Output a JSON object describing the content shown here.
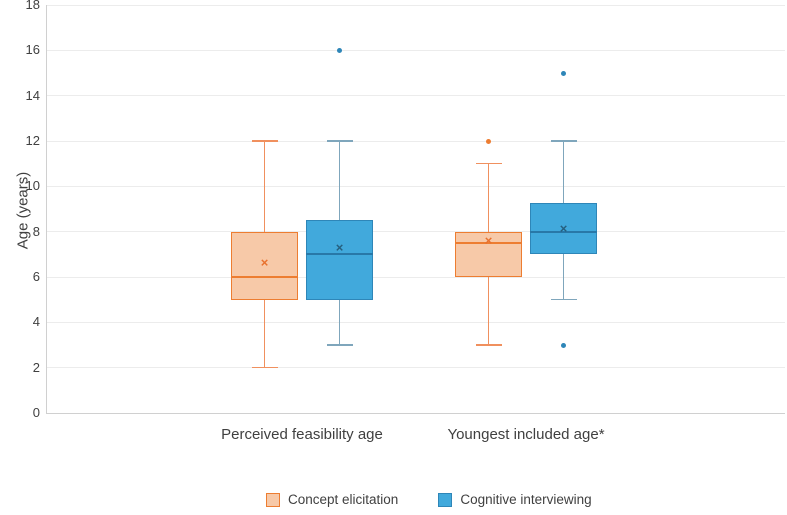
{
  "chart_data": {
    "type": "boxplot",
    "title": "",
    "ylabel": "Age (years)",
    "ylim": [
      0,
      18
    ],
    "yticks": [
      0,
      2,
      4,
      6,
      8,
      10,
      12,
      14,
      16,
      18
    ],
    "grid": true,
    "legend_position": "bottom",
    "categories": [
      "Perceived feasibility age",
      "Youngest included age*"
    ],
    "series": [
      {
        "name": "Concept elicitation",
        "fill": "#F7C9A8",
        "border": "#ED7D31",
        "whisker": "#F0905E",
        "median_color": "#ED7D31",
        "mean_color": "#E8712E",
        "outlier_color": "#ED7D31",
        "boxes": [
          {
            "category": "Perceived feasibility age",
            "min": 2,
            "q1": 5,
            "median": 6,
            "q3": 8,
            "max": 12,
            "mean": 6.6,
            "outliers": []
          },
          {
            "category": "Youngest included age*",
            "min": 3,
            "q1": 6,
            "median": 7.5,
            "q3": 8,
            "max": 11,
            "mean": 7.6,
            "outliers": [
              12
            ]
          }
        ]
      },
      {
        "name": "Cognitive interviewing",
        "fill": "#41A9DC",
        "border": "#2E86B8",
        "whisker": "#7FA6BC",
        "median_color": "#2878A8",
        "mean_color": "#265F7E",
        "outlier_color": "#2E86B8",
        "boxes": [
          {
            "category": "Perceived feasibility age",
            "min": 3,
            "q1": 5,
            "median": 7,
            "q3": 8.5,
            "max": 12,
            "mean": 7.3,
            "outliers": [
              16
            ]
          },
          {
            "category": "Youngest included age*",
            "min": 5,
            "q1": 7,
            "median": 8,
            "q3": 9.25,
            "max": 12,
            "mean": 8.1,
            "outliers": [
              15,
              3
            ]
          }
        ]
      }
    ]
  },
  "legend": {
    "items": [
      {
        "label": "Concept elicitation",
        "fill": "#F7C9A8",
        "border": "#ED7D31"
      },
      {
        "label": "Cognitive interviewing",
        "fill": "#41A9DC",
        "border": "#2E86B8"
      }
    ]
  },
  "colors": {
    "gridline": "#ECECEC",
    "axis": "#D0D0D0",
    "text": "#404040",
    "background": "#FFFFFF"
  }
}
